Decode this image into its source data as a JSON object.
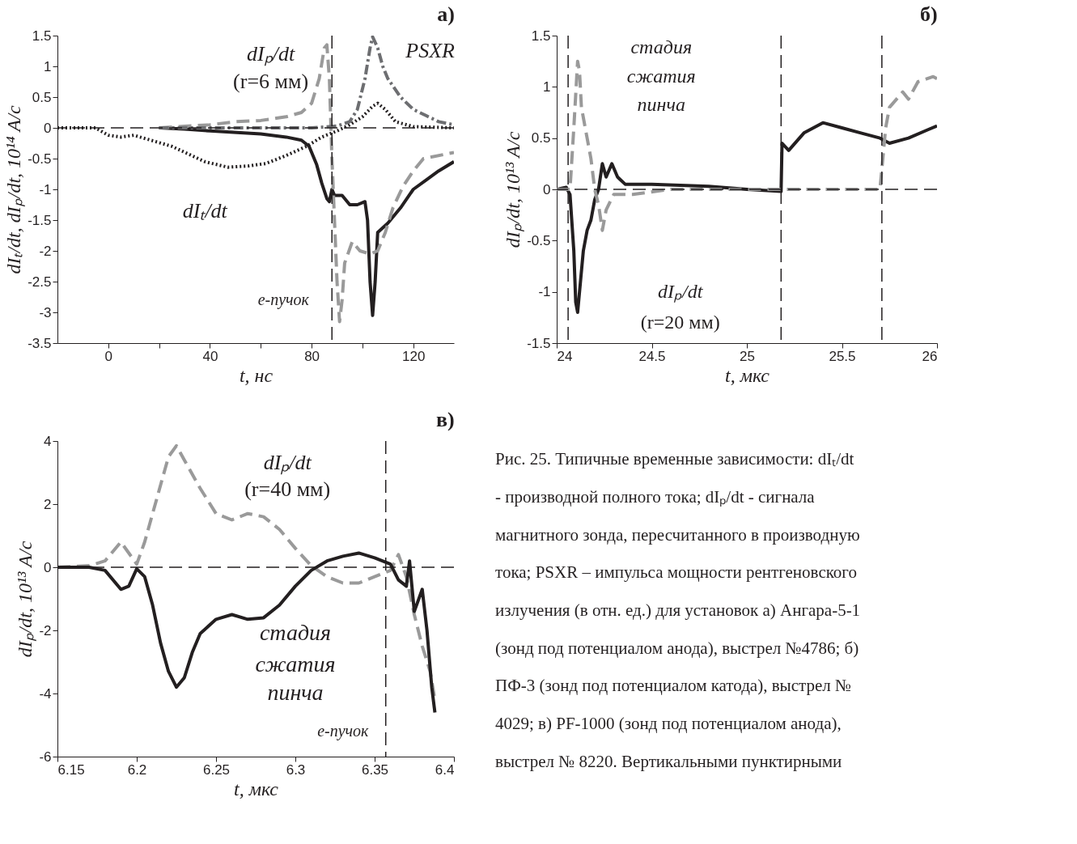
{
  "chart_data": [
    {
      "type": "line",
      "title": "а)",
      "xlabel": "t, нс",
      "ylabel": "dIₜ/dt, dIₚ/dt, 10¹⁴ А/с",
      "xlim": [
        -20,
        136
      ],
      "xticks": [
        0,
        {
          "value": 20,
          "label": null
        },
        40,
        {
          "value": 60,
          "label": null
        },
        80,
        {
          "value": 100,
          "label": null
        },
        120
      ],
      "ylim": [
        -3.5,
        1.5
      ],
      "yticks": [
        -3.5,
        -3,
        -2.5,
        -2,
        -1.5,
        -1,
        -0.5,
        0,
        0.5,
        1,
        1.5
      ],
      "grid": false,
      "series": [
        {
          "color": "#231f20",
          "line_style": "dotted",
          "x": [
            -20,
            -5,
            0,
            5,
            10,
            25,
            38,
            47,
            55,
            62,
            70,
            78,
            84,
            90,
            95,
            100,
            104,
            106,
            109,
            113,
            120,
            136
          ],
          "values": [
            0,
            0,
            -0.12,
            -0.15,
            -0.12,
            -0.3,
            -0.55,
            -0.64,
            -0.62,
            -0.58,
            -0.45,
            -0.3,
            -0.15,
            -0.05,
            0.05,
            0.18,
            0.35,
            0.4,
            0.3,
            0.1,
            0.02,
            0
          ]
        },
        {
          "color": "#231f20",
          "line_style": "solid",
          "x": [
            20,
            30,
            40,
            60,
            70,
            76,
            79,
            82,
            84,
            86,
            87,
            88,
            89,
            92,
            95,
            98,
            101,
            102,
            103,
            104,
            105,
            106,
            110,
            115,
            120,
            125,
            130,
            136
          ],
          "values": [
            0,
            -0.02,
            -0.05,
            -0.1,
            -0.15,
            -0.2,
            -0.3,
            -0.6,
            -0.9,
            -1.15,
            -1.2,
            -1.0,
            -1.1,
            -1.1,
            -1.25,
            -1.25,
            -1.2,
            -1.5,
            -2.5,
            -3.05,
            -2.5,
            -1.7,
            -1.55,
            -1.3,
            -1.0,
            -0.85,
            -0.7,
            -0.55
          ]
        },
        {
          "color": "#9a9a9a",
          "line_style": "dashed",
          "x": [
            20,
            40,
            50,
            60,
            70,
            76,
            80,
            83,
            85,
            86,
            87,
            88,
            89,
            90,
            91,
            92,
            93,
            96,
            99,
            103,
            106,
            109,
            112,
            116,
            120,
            124,
            136
          ],
          "values": [
            0,
            0.05,
            0.1,
            0.12,
            0.18,
            0.25,
            0.4,
            0.8,
            1.3,
            1.35,
            0.8,
            -0.5,
            -1.5,
            -2.5,
            -3.15,
            -2.8,
            -2.2,
            -1.85,
            -2.0,
            -2.05,
            -2.0,
            -1.7,
            -1.3,
            -0.95,
            -0.7,
            -0.5,
            -0.4
          ]
        },
        {
          "color": "#6d6e71",
          "line_style": "dashdot",
          "x": [
            20,
            80,
            90,
            95,
            98,
            101,
            103,
            104,
            106,
            108,
            110,
            115,
            120,
            125,
            130,
            136
          ],
          "values": [
            0,
            0,
            0.03,
            0.1,
            0.3,
            0.8,
            1.3,
            1.48,
            1.3,
            1.0,
            0.8,
            0.5,
            0.3,
            0.2,
            0.1,
            0.05
          ]
        }
      ],
      "ref_lines": [
        {
          "axis": "y",
          "value": 0,
          "line_style": "dashed"
        },
        {
          "axis": "x",
          "value": 88,
          "line_style": "dashed"
        }
      ],
      "annotations": [
        "dIₚ/dt",
        "(r=6 мм)",
        "PSXR",
        "dIₜ/dt",
        "e-пучок"
      ]
    },
    {
      "type": "line",
      "title": "б)",
      "xlabel": "t, мкс",
      "ylabel": "dIₚ/dt, 10¹³ А/с",
      "xlim": [
        24,
        26
      ],
      "xticks": [
        24,
        24.5,
        25,
        25.5,
        26
      ],
      "ylim": [
        -1.5,
        1.5
      ],
      "yticks": [
        -1.5,
        -1,
        -0.5,
        0,
        0.5,
        1,
        1.5
      ],
      "grid": false,
      "series": [
        {
          "color": "#231f20",
          "line_style": "solid",
          "x": [
            24,
            24.05,
            24.07,
            24.09,
            24.1,
            24.11,
            24.12,
            24.14,
            24.16,
            24.18,
            24.2,
            24.22,
            24.24,
            24.26,
            24.29,
            24.32,
            24.36,
            24.5,
            24.8,
            25,
            25.18,
            25.185,
            25.22,
            25.3,
            25.4,
            25.5,
            25.6,
            25.7,
            25.75,
            25.85,
            25.95,
            26
          ],
          "values": [
            0,
            0.02,
            -0.05,
            -0.6,
            -1.1,
            -1.2,
            -1.0,
            -0.6,
            -0.4,
            -0.3,
            -0.1,
            0,
            0.25,
            0.12,
            0.25,
            0.12,
            0.05,
            0.05,
            0.03,
            0,
            -0.02,
            0.45,
            0.38,
            0.55,
            0.65,
            0.6,
            0.55,
            0.5,
            0.45,
            0.5,
            0.58,
            0.62
          ]
        },
        {
          "color": "#9a9a9a",
          "line_style": "dashed",
          "x": [
            24,
            24.07,
            24.09,
            24.11,
            24.12,
            24.13,
            24.15,
            24.16,
            24.18,
            24.2,
            24.22,
            24.24,
            24.26,
            24.3,
            24.4,
            24.6,
            25,
            25.7,
            25.71,
            25.73,
            25.75,
            25.82,
            25.85,
            25.9,
            25.98,
            26
          ],
          "values": [
            0,
            0,
            0.6,
            1.25,
            1.15,
            0.8,
            0.6,
            0.5,
            0.3,
            0,
            -0.15,
            -0.4,
            -0.2,
            -0.05,
            -0.05,
            0,
            0,
            0,
            0.2,
            0.6,
            0.8,
            0.95,
            0.88,
            1.05,
            1.1,
            1.08
          ]
        }
      ],
      "ref_lines": [
        {
          "axis": "y",
          "value": 0,
          "line_style": "dashed"
        },
        {
          "axis": "x",
          "value": 24.06,
          "line_style": "dashed"
        },
        {
          "axis": "x",
          "value": 25.18,
          "line_style": "dashed"
        },
        {
          "axis": "x",
          "value": 25.71,
          "line_style": "dashed"
        }
      ],
      "annotations": [
        "стадия",
        "сжатия",
        "пинча",
        "dIₚ/dt",
        "(r=20 мм)"
      ]
    },
    {
      "type": "line",
      "title": "в)",
      "xlabel": "t, мкс",
      "ylabel": "dIₚ/dt, 10¹³ А/с",
      "xlim": [
        6.15,
        6.4
      ],
      "xticks": [
        6.15,
        6.2,
        6.25,
        6.3,
        6.35,
        6.4
      ],
      "ylim": [
        -6,
        4
      ],
      "yticks": [
        -6,
        -4,
        -2,
        0,
        2,
        4
      ],
      "grid": false,
      "series": [
        {
          "color": "#9a9a9a",
          "line_style": "dashed",
          "x": [
            6.15,
            6.17,
            6.18,
            6.19,
            6.2,
            6.205,
            6.21,
            6.22,
            6.225,
            6.23,
            6.24,
            6.25,
            6.26,
            6.27,
            6.28,
            6.29,
            6.3,
            6.31,
            6.32,
            6.33,
            6.34,
            6.35,
            6.36,
            6.365,
            6.37,
            6.375,
            6.38,
            6.385,
            6.388
          ],
          "values": [
            0,
            0.05,
            0.2,
            0.8,
            0.1,
            0.8,
            1.7,
            3.5,
            3.85,
            3.4,
            2.5,
            1.7,
            1.5,
            1.7,
            1.6,
            1.2,
            0.6,
            0.05,
            -0.3,
            -0.5,
            -0.5,
            -0.3,
            -0.1,
            0.4,
            -0.3,
            -1.5,
            -2.5,
            -3.3,
            -4.2
          ]
        },
        {
          "color": "#231f20",
          "line_style": "solid",
          "x": [
            6.15,
            6.17,
            6.18,
            6.19,
            6.195,
            6.2,
            6.205,
            6.21,
            6.215,
            6.22,
            6.225,
            6.23,
            6.235,
            6.24,
            6.25,
            6.26,
            6.27,
            6.28,
            6.29,
            6.3,
            6.31,
            6.32,
            6.33,
            6.34,
            6.35,
            6.36,
            6.365,
            6.37,
            6.372,
            6.375,
            6.38,
            6.383,
            6.386,
            6.388
          ],
          "values": [
            0,
            0,
            -0.1,
            -0.7,
            -0.6,
            -0.05,
            -0.3,
            -1.2,
            -2.4,
            -3.3,
            -3.8,
            -3.5,
            -2.7,
            -2.1,
            -1.65,
            -1.5,
            -1.65,
            -1.6,
            -1.2,
            -0.6,
            -0.1,
            0.2,
            0.35,
            0.45,
            0.3,
            0.1,
            -0.4,
            -0.6,
            0.2,
            -1.4,
            -0.7,
            -2.0,
            -3.8,
            -4.6
          ]
        }
      ],
      "ref_lines": [
        {
          "axis": "y",
          "value": 0,
          "line_style": "dashed"
        },
        {
          "axis": "x",
          "value": 6.357,
          "line_style": "dashed"
        }
      ],
      "annotations": [
        "dIₚ/dt",
        "(r=40 мм)",
        "стадия",
        "сжатия",
        "пинча",
        "e-пучок"
      ]
    },
    {
      "type": "other",
      "annotations": [
        "Рис. 25. Типичные временные зависимости: dIₜ/dt",
        "- производной полного тока; dIₚ/dt - сигнала",
        "магнитного зонда, пересчитанного в производную",
        "тока; PSXR – импульса мощности рентгеновского",
        "излучения (в отн. ед.) для установок а) Ангара-5-1",
        "(зонд под потенциалом анода), выстрел №4786; б)",
        "ПФ-3 (зонд под потенциалом катода), выстрел №",
        "4029; в) PF-1000 (зонд под потенциалом анода),",
        "выстрел № 8220. Вертикальными пунктирными"
      ]
    }
  ]
}
